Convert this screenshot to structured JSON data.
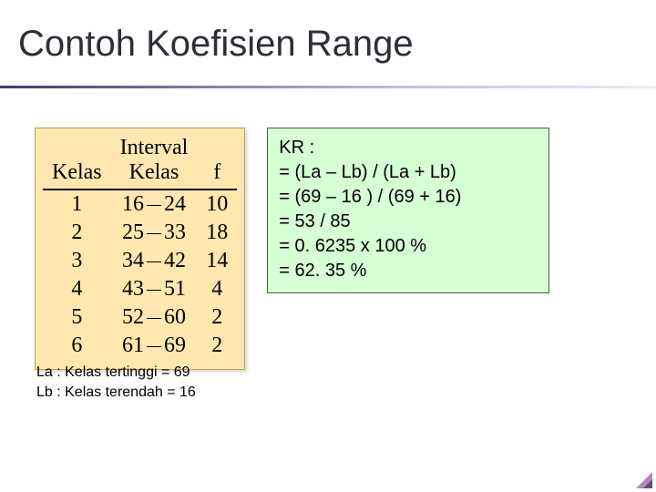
{
  "title": "Contoh Koefisien Range",
  "table": {
    "columns": {
      "kelas": "Kelas",
      "interval": "Interval\nKelas",
      "f": "f"
    },
    "rows": [
      {
        "kelas": "1",
        "lo": "16",
        "hi": "24",
        "f": "10"
      },
      {
        "kelas": "2",
        "lo": "25",
        "hi": "33",
        "f": "18"
      },
      {
        "kelas": "3",
        "lo": "34",
        "hi": "42",
        "f": "14"
      },
      {
        "kelas": "4",
        "lo": "43",
        "hi": "51",
        "f": "4"
      },
      {
        "kelas": "5",
        "lo": "52",
        "hi": "60",
        "f": "2"
      },
      {
        "kelas": "6",
        "lo": "61",
        "hi": "69",
        "f": "2"
      }
    ]
  },
  "formula": {
    "l1": "KR :",
    "l2": "= (La – Lb) / (La + Lb)",
    "l3": "= (69 – 16 ) / (69 + 16)",
    "l4": "= 53 / 85",
    "l5": "= 0. 6235 x 100 %",
    "l6": "= 62. 35 %"
  },
  "note": {
    "l1": "La : Kelas tertinggi  = 69",
    "l2": "Lb : Kelas terendah = 16"
  }
}
